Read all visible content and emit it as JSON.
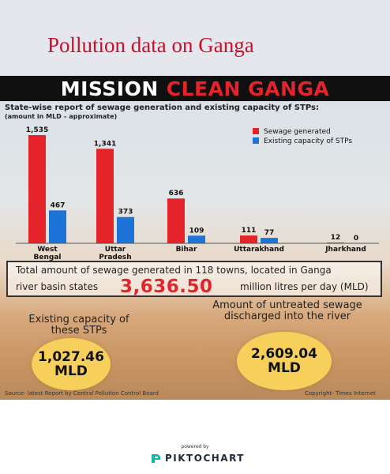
{
  "page": {
    "title": "Pollution data on Ganga"
  },
  "banner": {
    "word1": "MISSION",
    "word2": "CLEAN GANGA"
  },
  "subtitle": "State-wise report of sewage generation and existing capacity of STPs:",
  "unit_note": "(amount in MLD – approximate)",
  "colors": {
    "sewage": "#e4242a",
    "capacity": "#1e73d6",
    "accent_red": "#c8102e",
    "circle": "#f6d05a"
  },
  "chart_data": {
    "type": "bar",
    "categories": [
      "West Bengal",
      "Uttar Pradesh",
      "Bihar",
      "Uttarakhand",
      "Jharkhand"
    ],
    "category_label_lines": [
      [
        "West",
        "Bengal"
      ],
      [
        "Uttar",
        "Pradesh"
      ],
      [
        "Bihar"
      ],
      [
        "Uttarakhand"
      ],
      [
        "Jharkhand"
      ]
    ],
    "series": [
      {
        "name": "Sewage generated",
        "values": [
          1535,
          1341,
          636,
          111,
          12
        ],
        "labels": [
          "1,535",
          "1,341",
          "636",
          "111",
          "12"
        ]
      },
      {
        "name": "Existing capacity of STPs",
        "values": [
          467,
          373,
          109,
          77,
          0
        ],
        "labels": [
          "467",
          "373",
          "109",
          "77",
          "0"
        ]
      }
    ],
    "ylim": [
      0,
      1535
    ],
    "legend_position": "top-right",
    "grid": false
  },
  "total": {
    "line1": "Total amount of sewage generated in 118 towns, located in Ganga",
    "line2": "river  basin states",
    "value": "3,636.50",
    "unit": "million litres per day (MLD)"
  },
  "capacity": {
    "label": "Existing capacity of these STPs",
    "value": "1,027.46",
    "unit": "MLD"
  },
  "untreated": {
    "label": "Amount of untreated sewage discharged into the river",
    "value": "2,609.04",
    "unit": "MLD"
  },
  "source": "Source- latest Report by Central Pollution Control Board",
  "copyright": "Copyright- Times Internet",
  "footer": {
    "powered_by": "powered by",
    "brand": "PIKTOCHART",
    "brand_icon": "piktochart-logo-icon"
  }
}
